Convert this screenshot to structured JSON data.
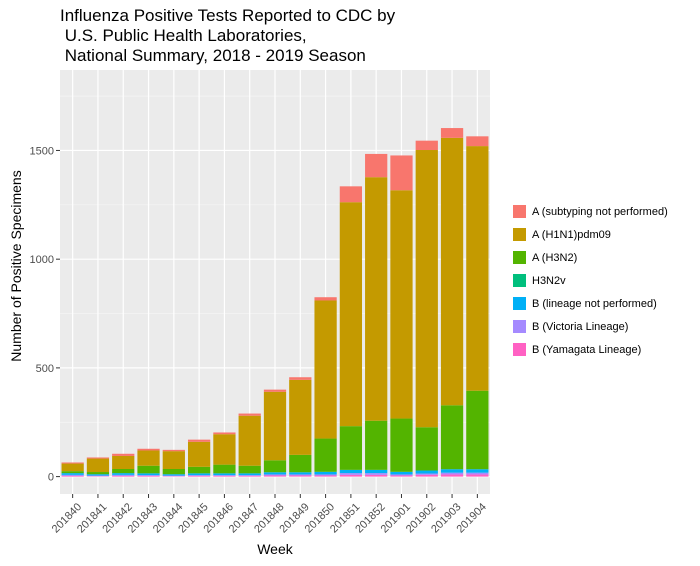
{
  "chart_data": {
    "type": "bar",
    "stacked": true,
    "title": "Influenza Positive Tests Reported to CDC by\n U.S. Public Health Laboratories,\n National Summary, 2018 - 2019 Season",
    "xlabel": "Week",
    "ylabel": "Number of Positive Specimens",
    "ylim": [
      -80,
      1870
    ],
    "yticks": [
      0,
      500,
      1000,
      1500
    ],
    "categories": [
      "201840",
      "201841",
      "201842",
      "201843",
      "201844",
      "201845",
      "201846",
      "201847",
      "201848",
      "201849",
      "201850",
      "201851",
      "201852",
      "201901",
      "201902",
      "201903",
      "201904"
    ],
    "series": [
      {
        "name": "B (Yamagata Lineage)",
        "color": "#FF61C3",
        "values": [
          3,
          2,
          3,
          3,
          2,
          3,
          3,
          3,
          5,
          5,
          5,
          8,
          8,
          5,
          8,
          10,
          10
        ]
      },
      {
        "name": "B (Victoria Lineage)",
        "color": "#A58AFF",
        "values": [
          5,
          3,
          5,
          4,
          3,
          4,
          4,
          4,
          5,
          5,
          5,
          8,
          8,
          5,
          6,
          8,
          8
        ]
      },
      {
        "name": "B (lineage not performed)",
        "color": "#00B0F6",
        "values": [
          8,
          6,
          8,
          8,
          6,
          8,
          8,
          8,
          10,
          10,
          12,
          15,
          15,
          12,
          14,
          16,
          16
        ]
      },
      {
        "name": "H3N2v",
        "color": "#00BF7D",
        "values": [
          0,
          0,
          0,
          0,
          0,
          0,
          0,
          0,
          0,
          0,
          0,
          0,
          0,
          0,
          0,
          0,
          0
        ]
      },
      {
        "name": "A (H3N2)",
        "color": "#53B400",
        "values": [
          9,
          10,
          19,
          35,
          24,
          30,
          40,
          35,
          55,
          80,
          153,
          201,
          226,
          245,
          199,
          294,
          361
        ]
      },
      {
        "name": "A (H1N1)pdm09",
        "color": "#C49A00",
        "values": [
          35,
          62,
          60,
          70,
          82,
          115,
          140,
          230,
          315,
          345,
          635,
          1030,
          1120,
          1050,
          1275,
          1230,
          1125
        ]
      },
      {
        "name": "A (subtyping not performed)",
        "color": "#F8766D",
        "values": [
          5,
          5,
          10,
          8,
          6,
          10,
          8,
          10,
          10,
          12,
          15,
          73,
          107,
          160,
          43,
          45,
          45
        ]
      }
    ],
    "legend_order": [
      "A (subtyping not performed)",
      "A (H1N1)pdm09",
      "A (H3N2)",
      "H3N2v",
      "B (lineage not performed)",
      "B (Victoria Lineage)",
      "B (Yamagata Lineage)"
    ],
    "legend_position": "right",
    "grid": true
  }
}
